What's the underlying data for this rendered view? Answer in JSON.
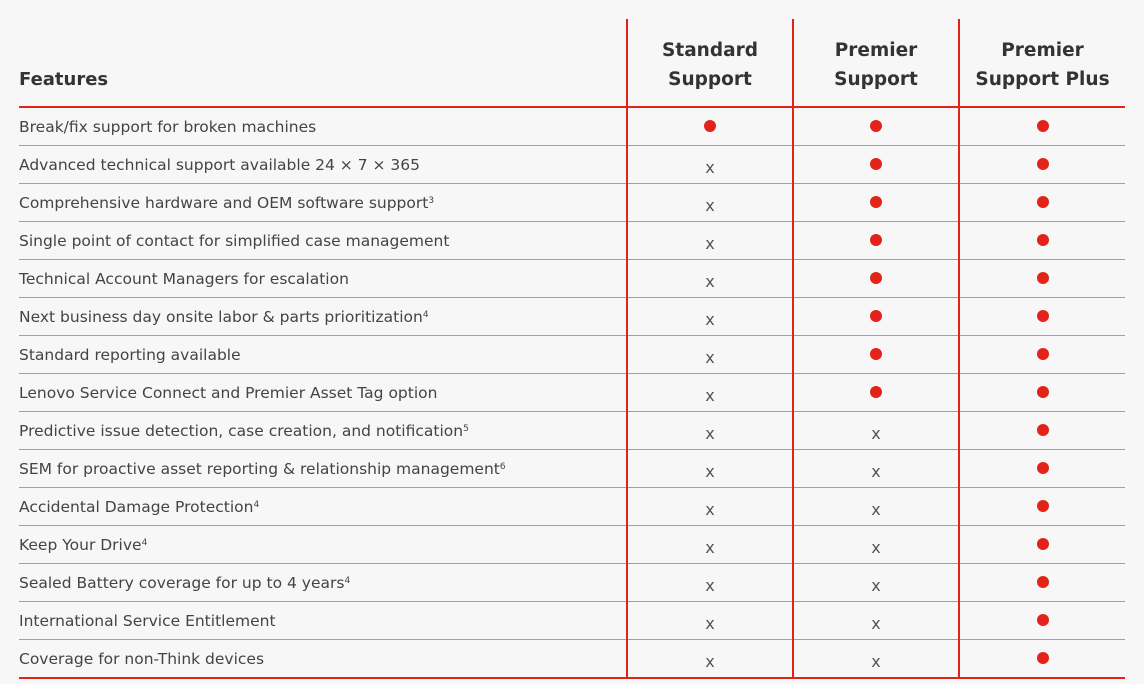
{
  "accent_color": "#e2231a",
  "header": {
    "features": "Features",
    "plans": [
      "Standard Support",
      "Premier Support",
      "Premier Support Plus"
    ]
  },
  "symbols": {
    "included": "red-dot-icon",
    "not_included": "x"
  },
  "rows": [
    {
      "feature": "Break/fix support for broken machines",
      "note": "",
      "values": [
        true,
        true,
        true
      ]
    },
    {
      "feature": "Advanced technical support available 24 × 7 × 365",
      "note": "",
      "values": [
        false,
        true,
        true
      ]
    },
    {
      "feature": "Comprehensive hardware and OEM software support",
      "note": "3",
      "values": [
        false,
        true,
        true
      ]
    },
    {
      "feature": "Single point of contact for simplified case management",
      "note": "",
      "values": [
        false,
        true,
        true
      ]
    },
    {
      "feature": "Technical Account Managers for escalation",
      "note": "",
      "values": [
        false,
        true,
        true
      ]
    },
    {
      "feature": "Next business day onsite labor & parts prioritization",
      "note": "4",
      "values": [
        false,
        true,
        true
      ]
    },
    {
      "feature": "Standard reporting available",
      "note": "",
      "values": [
        false,
        true,
        true
      ]
    },
    {
      "feature": "Lenovo Service Connect and Premier Asset Tag option",
      "note": "",
      "values": [
        false,
        true,
        true
      ]
    },
    {
      "feature": "Predictive issue detection, case creation, and notification",
      "note": "5",
      "values": [
        false,
        false,
        true
      ]
    },
    {
      "feature": "SEM for proactive asset reporting & relationship management",
      "note": "6",
      "values": [
        false,
        false,
        true
      ]
    },
    {
      "feature": "Accidental Damage Protection",
      "note": "4",
      "values": [
        false,
        false,
        true
      ]
    },
    {
      "feature": "Keep Your Drive",
      "note": "4",
      "values": [
        false,
        false,
        true
      ]
    },
    {
      "feature": "Sealed Battery coverage for up to 4 years",
      "note": "4",
      "values": [
        false,
        false,
        true
      ]
    },
    {
      "feature": "International Service Entitlement",
      "note": "",
      "values": [
        false,
        false,
        true
      ]
    },
    {
      "feature": "Coverage for non-Think devices",
      "note": "",
      "values": [
        false,
        false,
        true
      ]
    }
  ]
}
